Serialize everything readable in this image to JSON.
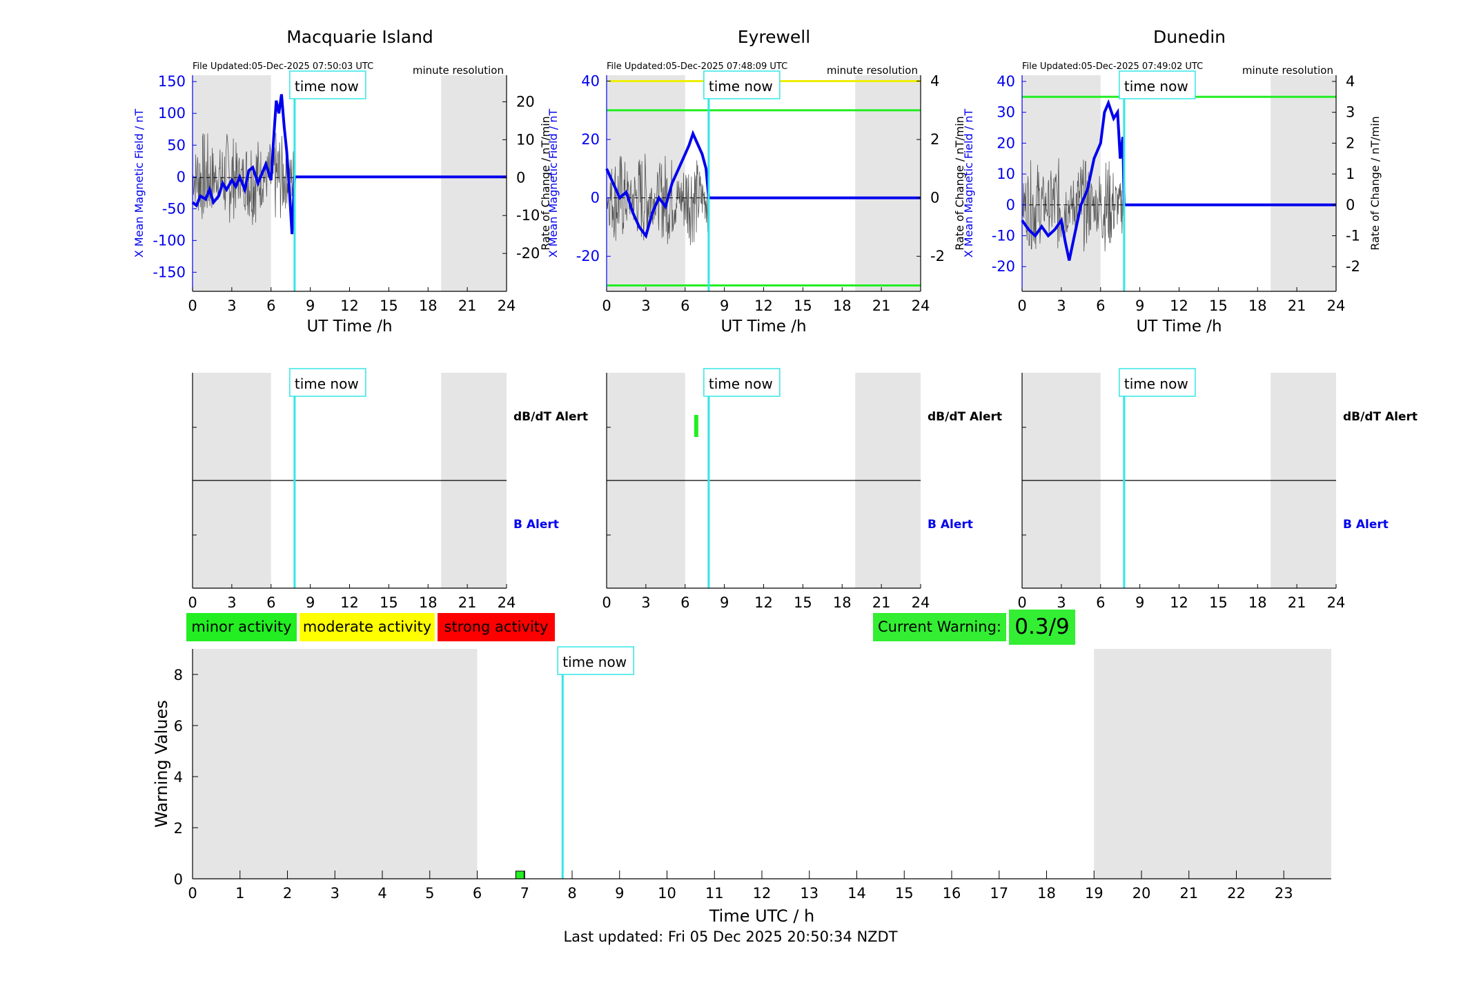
{
  "panels": [
    {
      "title": "Macquarie Island",
      "file_updated": "File Updated:05-Dec-2025 07:50:03 UTC",
      "resolution": "minute resolution",
      "ylabel_left": "X Mean Magnetic Field / nT",
      "ylabel_right": "Rate of Change / nT/min",
      "xlabel": "UT Time /h",
      "ylim_left": [
        -180,
        160
      ],
      "ylim_right": [
        -30,
        27
      ],
      "yticks_left": [
        -150,
        -100,
        -50,
        0,
        50,
        100,
        150
      ],
      "yticks_right": [
        -20,
        -10,
        0,
        10,
        20
      ],
      "thresholds": []
    },
    {
      "title": "Eyrewell",
      "file_updated": "File Updated:05-Dec-2025 07:48:09 UTC",
      "resolution": "minute resolution",
      "ylabel_left": "X Mean Magnetic Field / nT",
      "ylabel_right": "Rate of Change / nT/min",
      "xlabel": "UT Time /h",
      "ylim_left": [
        -32,
        42
      ],
      "ylim_right": [
        -3.2,
        4.2
      ],
      "yticks_left": [
        -20,
        0,
        20,
        40
      ],
      "yticks_right": [
        -2,
        0,
        2,
        4
      ],
      "thresholds": [
        {
          "value": 40,
          "color": "#eeee00"
        },
        {
          "value": 30,
          "color": "#22ee22"
        },
        {
          "value": -30,
          "color": "#22ee22"
        }
      ]
    },
    {
      "title": "Dunedin",
      "file_updated": "File Updated:05-Dec-2025 07:49:02 UTC",
      "resolution": "minute resolution",
      "ylabel_left": "X Mean Magnetic Field / nT",
      "ylabel_right": "Rate of Change / nT/min",
      "xlabel": "UT Time /h",
      "ylim_left": [
        -28,
        42
      ],
      "ylim_right": [
        -2.8,
        4.2
      ],
      "yticks_left": [
        -20,
        -10,
        0,
        10,
        20,
        30,
        40
      ],
      "yticks_right": [
        -2,
        -1,
        0,
        1,
        2,
        3,
        4
      ],
      "thresholds": [
        {
          "value": 35,
          "color": "#22ee22"
        }
      ]
    }
  ],
  "time_now_label": "time now",
  "alert_labels": {
    "dbdt": "dB/dT Alert",
    "b": "B Alert"
  },
  "legend": {
    "minor": {
      "label": "minor activity",
      "color": "#22ee22"
    },
    "moderate": {
      "label": "moderate activity",
      "color": "#ffff00"
    },
    "strong": {
      "label": "strong activity",
      "color": "#ff0000"
    }
  },
  "current_warning": {
    "label": "Current Warning:",
    "value": "0.3/9"
  },
  "colors": {
    "shade": "#e5e5e5",
    "time_now": "#33e5e5",
    "field": "#0000ee",
    "rate": "#555555"
  },
  "chart_data": [
    {
      "type": "line",
      "title": "Macquarie Island",
      "xlabel": "UT Time /h",
      "xlim": [
        0,
        24
      ],
      "xticks": [
        0,
        3,
        6,
        9,
        12,
        15,
        18,
        21,
        24
      ],
      "ylabel": "X Mean Magnetic Field / nT",
      "time_now": 7.8,
      "night_shading": [
        [
          0,
          6
        ],
        [
          19,
          24
        ]
      ],
      "series": [
        {
          "values": [
            [
              0,
              -40
            ],
            [
              0.3,
              -45
            ],
            [
              0.6,
              -30
            ],
            [
              1,
              -35
            ],
            [
              1.3,
              -20
            ],
            [
              1.6,
              -40
            ],
            [
              2,
              -30
            ],
            [
              2.3,
              -10
            ],
            [
              2.6,
              -20
            ],
            [
              3,
              -5
            ],
            [
              3.3,
              -15
            ],
            [
              3.6,
              0
            ],
            [
              4,
              -20
            ],
            [
              4.3,
              10
            ],
            [
              4.6,
              15
            ],
            [
              5,
              -10
            ],
            [
              5.3,
              5
            ],
            [
              5.6,
              20
            ],
            [
              6,
              -5
            ],
            [
              6.2,
              60
            ],
            [
              6.4,
              120
            ],
            [
              6.6,
              100
            ],
            [
              6.8,
              130
            ],
            [
              7,
              80
            ],
            [
              7.2,
              40
            ],
            [
              7.4,
              -20
            ],
            [
              7.6,
              -90
            ],
            [
              7.8,
              0
            ],
            [
              24,
              0
            ]
          ]
        }
      ]
    },
    {
      "type": "line",
      "title": "Eyrewell",
      "xlabel": "UT Time /h",
      "xlim": [
        0,
        24
      ],
      "xticks": [
        0,
        3,
        6,
        9,
        12,
        15,
        18,
        21,
        24
      ],
      "ylabel": "X Mean Magnetic Field / nT",
      "time_now": 7.8,
      "night_shading": [
        [
          0,
          6
        ],
        [
          19,
          24
        ]
      ],
      "series": [
        {
          "values": [
            [
              0,
              10
            ],
            [
              0.5,
              5
            ],
            [
              1,
              0
            ],
            [
              1.5,
              2
            ],
            [
              2,
              -5
            ],
            [
              2.5,
              -10
            ],
            [
              3,
              -13
            ],
            [
              3.5,
              -5
            ],
            [
              4,
              0
            ],
            [
              4.5,
              -3
            ],
            [
              5,
              5
            ],
            [
              5.5,
              10
            ],
            [
              6,
              15
            ],
            [
              6.3,
              18
            ],
            [
              6.6,
              22
            ],
            [
              7,
              18
            ],
            [
              7.3,
              15
            ],
            [
              7.6,
              10
            ],
            [
              7.8,
              0
            ],
            [
              24,
              0
            ]
          ]
        }
      ]
    },
    {
      "type": "line",
      "title": "Dunedin",
      "xlabel": "UT Time /h",
      "xlim": [
        0,
        24
      ],
      "xticks": [
        0,
        3,
        6,
        9,
        12,
        15,
        18,
        21,
        24
      ],
      "ylabel": "X Mean Magnetic Field / nT",
      "time_now": 7.8,
      "night_shading": [
        [
          0,
          6
        ],
        [
          19,
          24
        ]
      ],
      "series": [
        {
          "values": [
            [
              0,
              -5
            ],
            [
              0.5,
              -8
            ],
            [
              1,
              -10
            ],
            [
              1.5,
              -7
            ],
            [
              2,
              -10
            ],
            [
              2.5,
              -8
            ],
            [
              3,
              -5
            ],
            [
              3.3,
              -12
            ],
            [
              3.6,
              -18
            ],
            [
              4,
              -10
            ],
            [
              4.5,
              0
            ],
            [
              5,
              5
            ],
            [
              5.5,
              15
            ],
            [
              6,
              20
            ],
            [
              6.3,
              30
            ],
            [
              6.6,
              33
            ],
            [
              7,
              28
            ],
            [
              7.3,
              30
            ],
            [
              7.5,
              15
            ],
            [
              7.7,
              22
            ],
            [
              7.8,
              0
            ],
            [
              24,
              0
            ]
          ]
        }
      ]
    },
    {
      "type": "bar",
      "xlabel": "Time UTC / h",
      "ylabel": "Warning Values",
      "xlim": [
        0,
        24
      ],
      "ylim": [
        0,
        9
      ],
      "xticks": [
        0,
        1,
        2,
        3,
        4,
        5,
        6,
        7,
        8,
        9,
        10,
        11,
        12,
        13,
        14,
        15,
        16,
        17,
        18,
        19,
        20,
        21,
        22,
        23
      ],
      "yticks": [
        0,
        2,
        4,
        6,
        8
      ],
      "time_now": 7.8,
      "night_shading": [
        [
          0,
          6
        ],
        [
          19,
          24
        ]
      ],
      "bars": [
        {
          "x": 6.9,
          "value": 0.3,
          "color": "#22ee22"
        }
      ]
    }
  ],
  "footer": "Last updated: Fri 05 Dec 2025 20:50:34 NZDT"
}
